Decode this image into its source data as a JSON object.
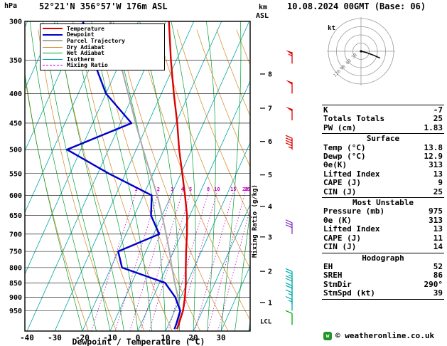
{
  "header": {
    "title": "52°21'N 356°57'W 176m ASL",
    "datetime": "10.08.2024 00GMT (Base: 06)"
  },
  "branding": {
    "copyright": "© weatheronline.co.uk",
    "logo_letter": "w"
  },
  "axes": {
    "pressure_label": "hPa",
    "pressure_ticks": [
      300,
      350,
      400,
      450,
      500,
      550,
      600,
      650,
      700,
      750,
      800,
      850,
      900,
      950
    ],
    "temp_axis_label": "Dewpoint / Temperature (°C)",
    "temp_ticks": [
      -40,
      -30,
      -20,
      -10,
      0,
      10,
      20,
      30
    ],
    "km_label_line1": "km",
    "km_label_line2": "ASL",
    "km_ticks": [
      {
        "label": "8",
        "p": 370
      },
      {
        "label": "7",
        "p": 424
      },
      {
        "label": "6",
        "p": 484
      },
      {
        "label": "5",
        "p": 553
      },
      {
        "label": "4",
        "p": 627
      },
      {
        "label": "3",
        "p": 708
      },
      {
        "label": "2",
        "p": 812
      },
      {
        "label": "1",
        "p": 919
      }
    ],
    "lcl_label": "LCL",
    "mixing_axis_label": "Mixing Ratio (g/kg)"
  },
  "legend": [
    {
      "label": "Temperature",
      "color_key": "temperature",
      "thick": 2,
      "dash": false
    },
    {
      "label": "Dewpoint",
      "color_key": "dewpoint",
      "thick": 2,
      "dash": false
    },
    {
      "label": "Parcel Trajectory",
      "color_key": "parcel",
      "thick": 2,
      "dash": false
    },
    {
      "label": "Dry Adiabat",
      "color_key": "dry_adiabat",
      "thick": 1,
      "dash": false
    },
    {
      "label": "Wet Adiabat",
      "color_key": "wet_adiabat",
      "thick": 1,
      "dash": false
    },
    {
      "label": "Isotherm",
      "color_key": "isotherm",
      "thick": 1,
      "dash": false
    },
    {
      "label": "Mixing Ratio",
      "color_key": "mixing_ratio",
      "thick": 1,
      "dash": true
    }
  ],
  "stats_panel": {
    "sections": [
      {
        "header": "",
        "rows": [
          [
            "K",
            "-7"
          ],
          [
            "Totals Totals",
            "25"
          ],
          [
            "PW (cm)",
            "1.83"
          ]
        ]
      },
      {
        "header": "Surface",
        "rows": [
          [
            "Temp (°C)",
            "13.8"
          ],
          [
            "Dewp (°C)",
            "12.9"
          ],
          [
            "θe(K)",
            "313"
          ],
          [
            "Lifted Index",
            "13"
          ],
          [
            "CAPE (J)",
            "9"
          ],
          [
            "CIN (J)",
            "25"
          ]
        ]
      },
      {
        "header": "Most Unstable",
        "rows": [
          [
            "Pressure (mb)",
            "975"
          ],
          [
            "θe (K)",
            "313"
          ],
          [
            "Lifted Index",
            "13"
          ],
          [
            "CAPE (J)",
            "11"
          ],
          [
            "CIN (J)",
            "14"
          ]
        ]
      },
      {
        "header": "Hodograph",
        "rows": [
          [
            "EH",
            "52"
          ],
          [
            "SREH",
            "86"
          ],
          [
            "StmDir",
            "290°"
          ],
          [
            "StmSpd (kt)",
            "39"
          ]
        ]
      }
    ]
  },
  "chart_data": {
    "type": "skewt_log_p",
    "title": "52°21'N 356°57'W 176m ASL  10.08.2024 00GMT (Base: 06)",
    "pressure_axis_hpa": [
      300,
      1030
    ],
    "temp_axis_c": [
      -40,
      40
    ],
    "isotherm_step_c": 10,
    "mixing_ratio_lines_g_kg": [
      1,
      2,
      3,
      4,
      5,
      8,
      10,
      15,
      20,
      25
    ],
    "lcl_p": 992,
    "colors": {
      "temperature": "#dd0000",
      "dewpoint": "#0000cc",
      "parcel": "#aaaaaa",
      "dry_adiabat": "#d2891e",
      "wet_adiabat": "#00a030",
      "isotherm": "#00a5a5",
      "mixing_ratio": "#c800c8",
      "barb_high": "#dd0000",
      "barb_mid": "#8833cc",
      "barb_low": "#00aaaa",
      "barb_sfc": "#00aa00"
    },
    "temperature_profile": [
      {
        "p": 300,
        "t": -39
      },
      {
        "p": 350,
        "t": -32
      },
      {
        "p": 400,
        "t": -25.5
      },
      {
        "p": 450,
        "t": -19.5
      },
      {
        "p": 500,
        "t": -14.5
      },
      {
        "p": 550,
        "t": -9.5
      },
      {
        "p": 600,
        "t": -5
      },
      {
        "p": 650,
        "t": -1
      },
      {
        "p": 700,
        "t": 2
      },
      {
        "p": 750,
        "t": 4.5
      },
      {
        "p": 800,
        "t": 7
      },
      {
        "p": 850,
        "t": 9.5
      },
      {
        "p": 900,
        "t": 11.5
      },
      {
        "p": 950,
        "t": 13
      },
      {
        "p": 1000,
        "t": 13.6
      },
      {
        "p": 1022,
        "t": 13.8
      }
    ],
    "dewpoint_profile": [
      {
        "p": 300,
        "t": -70
      },
      {
        "p": 350,
        "t": -60
      },
      {
        "p": 400,
        "t": -50
      },
      {
        "p": 450,
        "t": -36
      },
      {
        "p": 500,
        "t": -55
      },
      {
        "p": 550,
        "t": -36
      },
      {
        "p": 600,
        "t": -17
      },
      {
        "p": 650,
        "t": -14
      },
      {
        "p": 700,
        "t": -8
      },
      {
        "p": 750,
        "t": -20
      },
      {
        "p": 800,
        "t": -16
      },
      {
        "p": 850,
        "t": 2
      },
      {
        "p": 900,
        "t": 8
      },
      {
        "p": 950,
        "t": 12
      },
      {
        "p": 1000,
        "t": 12.7
      },
      {
        "p": 1022,
        "t": 12.9
      }
    ],
    "parcel_profile": [
      {
        "p": 300,
        "t": -60
      },
      {
        "p": 350,
        "t": -50.5
      },
      {
        "p": 400,
        "t": -42
      },
      {
        "p": 450,
        "t": -34.5
      },
      {
        "p": 500,
        "t": -27.5
      },
      {
        "p": 550,
        "t": -21
      },
      {
        "p": 600,
        "t": -15
      },
      {
        "p": 650,
        "t": -10
      },
      {
        "p": 700,
        "t": -5.5
      },
      {
        "p": 750,
        "t": -1.5
      },
      {
        "p": 800,
        "t": 2
      },
      {
        "p": 850,
        "t": 5.5
      },
      {
        "p": 900,
        "t": 9
      },
      {
        "p": 950,
        "t": 12
      },
      {
        "p": 1000,
        "t": 13.4
      },
      {
        "p": 1022,
        "t": 13.8
      }
    ],
    "wind_barbs": [
      {
        "p": 355,
        "speed_kt": 55,
        "color_key": "barb_high"
      },
      {
        "p": 400,
        "speed_kt": 50,
        "color_key": "barb_high"
      },
      {
        "p": 445,
        "speed_kt": 50,
        "color_key": "barb_high"
      },
      {
        "p": 500,
        "speed_kt": 45,
        "color_key": "barb_high"
      },
      {
        "p": 700,
        "speed_kt": 30,
        "color_key": "barb_mid"
      },
      {
        "p": 850,
        "speed_kt": 25,
        "color_key": "barb_low"
      },
      {
        "p": 875,
        "speed_kt": 20,
        "color_key": "barb_low"
      },
      {
        "p": 900,
        "speed_kt": 20,
        "color_key": "barb_low"
      },
      {
        "p": 925,
        "speed_kt": 15,
        "color_key": "barb_low"
      },
      {
        "p": 950,
        "speed_kt": 15,
        "color_key": "barb_low"
      },
      {
        "p": 1005,
        "speed_kt": 10,
        "color_key": "barb_sfc"
      }
    ],
    "hodograph": {
      "unit_label": "kt",
      "rings_kt": [
        30,
        60,
        90,
        120
      ],
      "ring_labels": [
        "30",
        "60",
        "90",
        "120"
      ],
      "storm_dir_deg": 290,
      "storm_speed_kt": 39,
      "trace_kt": [
        [
          0,
          0
        ],
        [
          20,
          -5
        ],
        [
          45,
          -14
        ],
        [
          70,
          -25
        ]
      ]
    }
  }
}
